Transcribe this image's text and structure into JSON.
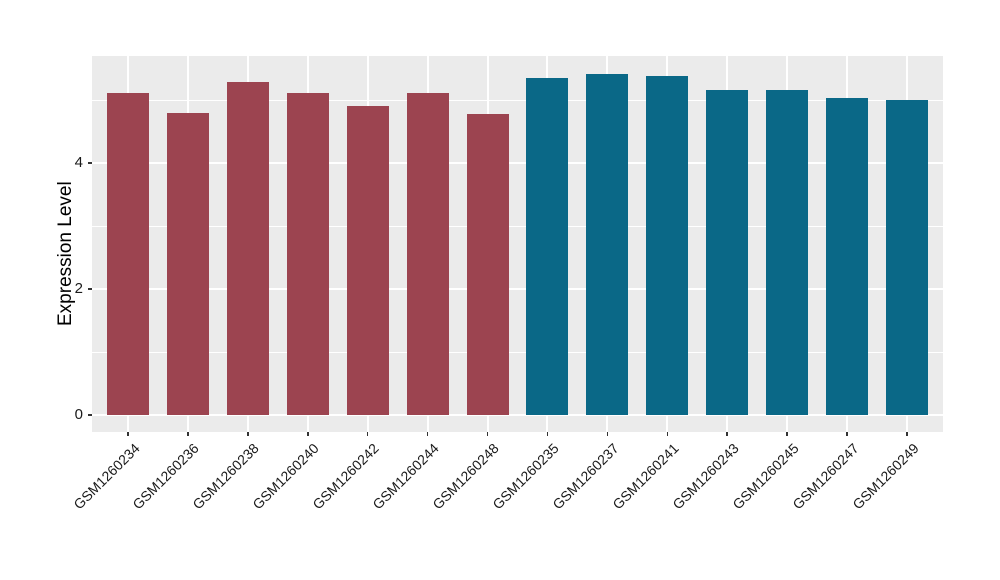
{
  "chart_data": {
    "type": "bar",
    "title": "",
    "xlabel": "",
    "ylabel": "Expression Level",
    "categories": [
      "GSM1260234",
      "GSM1260236",
      "GSM1260238",
      "GSM1260240",
      "GSM1260242",
      "GSM1260244",
      "GSM1260248",
      "GSM1260235",
      "GSM1260237",
      "GSM1260241",
      "GSM1260243",
      "GSM1260245",
      "GSM1260247",
      "GSM1260249"
    ],
    "values": [
      5.12,
      4.8,
      5.29,
      5.11,
      4.91,
      5.11,
      4.79,
      5.35,
      5.42,
      5.39,
      5.17,
      5.16,
      5.04,
      5.0
    ],
    "color_groups": [
      0,
      0,
      0,
      0,
      0,
      0,
      0,
      1,
      1,
      1,
      1,
      1,
      1,
      1
    ],
    "group_colors": [
      "#9C4450",
      "#0A6887"
    ],
    "yticks": [
      0,
      2,
      4
    ],
    "yticks_minor": [
      1,
      3,
      5
    ],
    "ylim": [
      -0.27,
      5.71
    ],
    "grid": true,
    "legend": false,
    "panel_background": "#EBEBEB",
    "grid_color": "#FFFFFF",
    "tick_color": "#333333",
    "axis_text_color": "#1a1a1a"
  }
}
